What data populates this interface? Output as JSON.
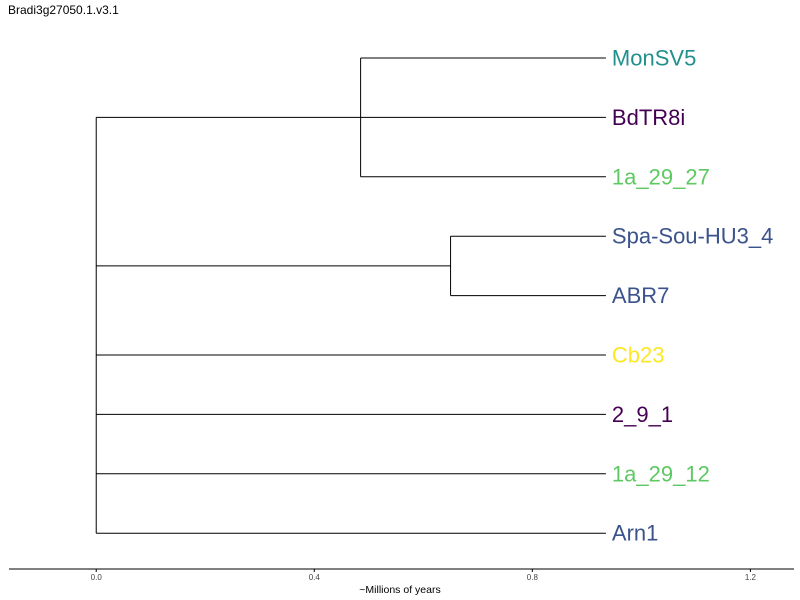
{
  "title": "Bradi3g27050.1.v3.1",
  "chart_data": {
    "type": "dendrogram",
    "xlabel": "~Millions of years",
    "xlim": [
      -0.16,
      1.28
    ],
    "xticks": [
      0.0,
      0.4,
      0.8,
      1.2
    ],
    "xtick_labels": [
      "0.0",
      "0.4",
      "0.8",
      "1.2"
    ],
    "leaf_end": 0.935,
    "leaves": [
      {
        "name": "MonSV5",
        "color": "#21908c"
      },
      {
        "name": "BdTR8i",
        "color": "#440154"
      },
      {
        "name": "1a_29_27",
        "color": "#5ec962"
      },
      {
        "name": "Spa-Sou-HU3_4",
        "color": "#3b528b"
      },
      {
        "name": "ABR7",
        "color": "#3b528b"
      },
      {
        "name": "Cb23",
        "color": "#fde725"
      },
      {
        "name": "2_9_1",
        "color": "#440154"
      },
      {
        "name": "1a_29_12",
        "color": "#5ec962"
      },
      {
        "name": "Arn1",
        "color": "#3b528b"
      }
    ],
    "clusters": [
      {
        "id": "A",
        "height": 0.485,
        "members": [
          "MonSV5",
          "BdTR8i",
          "1a_29_27"
        ]
      },
      {
        "id": "B",
        "height": 0.65,
        "members": [
          "Spa-Sou-HU3_4",
          "ABR7"
        ]
      },
      {
        "id": "root",
        "height": 0.0,
        "members": [
          "A",
          "B",
          "Cb23",
          "2_9_1",
          "1a_29_12",
          "Arn1"
        ]
      }
    ]
  }
}
